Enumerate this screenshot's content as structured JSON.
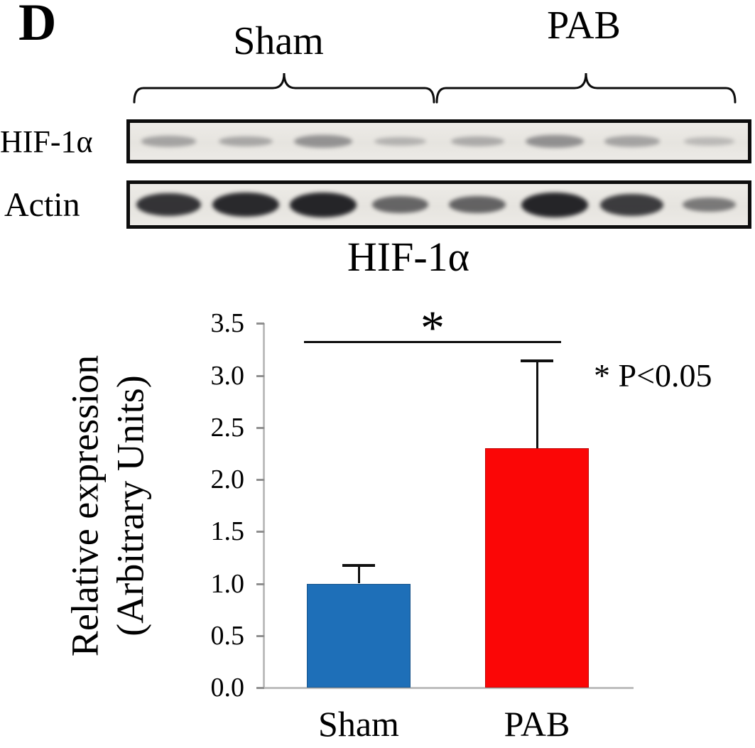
{
  "panel_label": "D",
  "blot": {
    "groups": [
      {
        "label": "Sham",
        "lanes": 4
      },
      {
        "label": "PAB",
        "lanes": 4
      }
    ],
    "rows": [
      {
        "label": "HIF-1α",
        "band_intensities": [
          0.38,
          0.33,
          0.55,
          0.22,
          0.3,
          0.58,
          0.38,
          0.15
        ]
      },
      {
        "label": "Actin",
        "band_intensities": [
          0.85,
          0.93,
          0.96,
          0.5,
          0.52,
          0.96,
          0.8,
          0.35
        ]
      }
    ]
  },
  "axis_title": {
    "line1": "Relative expression",
    "line2": "(Arbitrary Units)"
  },
  "chart_data": {
    "type": "bar",
    "title": "HIF-1α",
    "categories": [
      "Sham",
      "PAB"
    ],
    "values": [
      1.0,
      2.3
    ],
    "errors_upper": [
      0.18,
      0.85
    ],
    "bar_colors": [
      "#1e6fb8",
      "#fb0606"
    ],
    "ylabel": "Relative expression (Arbitrary Units)",
    "ylim": [
      0,
      3.5
    ],
    "yticks": [
      "3.5",
      "3.0",
      "2.5",
      "2.0",
      "1.5",
      "1.0",
      "0.5",
      "0.0"
    ],
    "grid": false,
    "legend": "none",
    "significance": {
      "label": "*",
      "between": [
        "Sham",
        "PAB"
      ],
      "note": "* P<0.05"
    }
  }
}
